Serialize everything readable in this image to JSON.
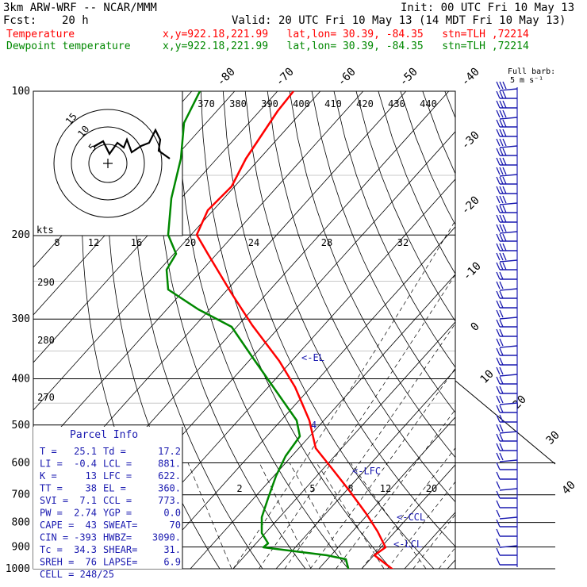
{
  "header": {
    "model": "3km ARW-WRF -- NCAR/MMM",
    "init": "Init: 00 UTC Fri 10 May 13",
    "fcst_label": "Fcst:",
    "fcst_value": "20 h",
    "valid": "Valid: 20 UTC Fri 10 May 13 (14 MDT Fri 10 May 13)",
    "temp_label": "Temperature",
    "temp_info": "x,y=922.18,221.99   lat,lon= 30.39, -84.35   stn=TLH ,72214",
    "dew_label": "Dewpoint temperature",
    "dew_info": "x,y=922.18,221.99   lat,lon= 30.39, -84.35   stn=TLH ,72214"
  },
  "barb_legend": {
    "line1": "Full barb:",
    "line2": "5 m s⁻¹"
  },
  "hodograph": {
    "units": "kts",
    "ring_labels": [
      "5",
      "10",
      "15"
    ]
  },
  "parcel_info": {
    "title": "Parcel Info",
    "rows": [
      [
        "T  =",
        "25.1",
        "Td =",
        "17.2"
      ],
      [
        "LI =",
        "-0.4",
        "LCL =",
        "881."
      ],
      [
        "K  =",
        "13",
        "LFC =",
        "622."
      ],
      [
        "TT =",
        "38",
        "EL  =",
        "360."
      ],
      [
        "SVI =",
        "7.1",
        "CCL =",
        "773."
      ],
      [
        "PW =",
        "2.74",
        "YGP =",
        "0.0"
      ],
      [
        "CAPE =",
        "43",
        "SWEAT=",
        "70"
      ],
      [
        "CIN =",
        "-393",
        "HWBZ=",
        "3090."
      ],
      [
        "Tc =",
        "34.3",
        "SHEAR=",
        "31."
      ],
      [
        "SREH =",
        "76",
        "LAPSE=",
        "6.9"
      ]
    ],
    "cell": "CELL = 248/25"
  },
  "level_labels": {
    "el": "<-EL",
    "lfc": "<-LFC",
    "ccl": "<-CCL",
    "lcl": "<-LCL"
  },
  "chart_data": {
    "type": "line",
    "pressure_levels": [
      100,
      200,
      300,
      400,
      500,
      600,
      700,
      800,
      900,
      1000
    ],
    "isotherm_labels": [
      "-80",
      "-70",
      "-60",
      "-50",
      "-40",
      "-30",
      "-20",
      "-10",
      "0",
      "10",
      "20",
      "30",
      "40"
    ],
    "theta_labels": [
      "370",
      "380",
      "390",
      "400",
      "410",
      "420",
      "430",
      "440"
    ],
    "theta_labels_left": [
      "290",
      "280",
      "270"
    ],
    "mixing_ratio_labels": [
      "2",
      "5",
      "8",
      "12",
      "20"
    ],
    "hodo_speed_labels": [
      "8",
      "12",
      "16",
      "20",
      "24",
      "28",
      "32"
    ],
    "series": [
      {
        "name": "Temperature",
        "color": "#ff0000",
        "x": [
          -75,
          -57,
          -48,
          -38,
          -27,
          -15,
          -6,
          2,
          10,
          17,
          22,
          26
        ],
        "y": [
          110,
          150,
          210,
          260,
          330,
          400,
          480,
          520,
          640,
          790,
          900,
          1000
        ]
      },
      {
        "name": "Dewpoint temperature",
        "color": "#008800",
        "x": [
          -91,
          -94,
          -96,
          -99,
          -100,
          -97,
          -105,
          -88,
          -40,
          -20,
          -6,
          2
        ],
        "y": [
          110,
          150,
          200,
          240,
          270,
          300,
          330,
          400,
          520,
          640,
          850,
          1000
        ]
      }
    ]
  }
}
